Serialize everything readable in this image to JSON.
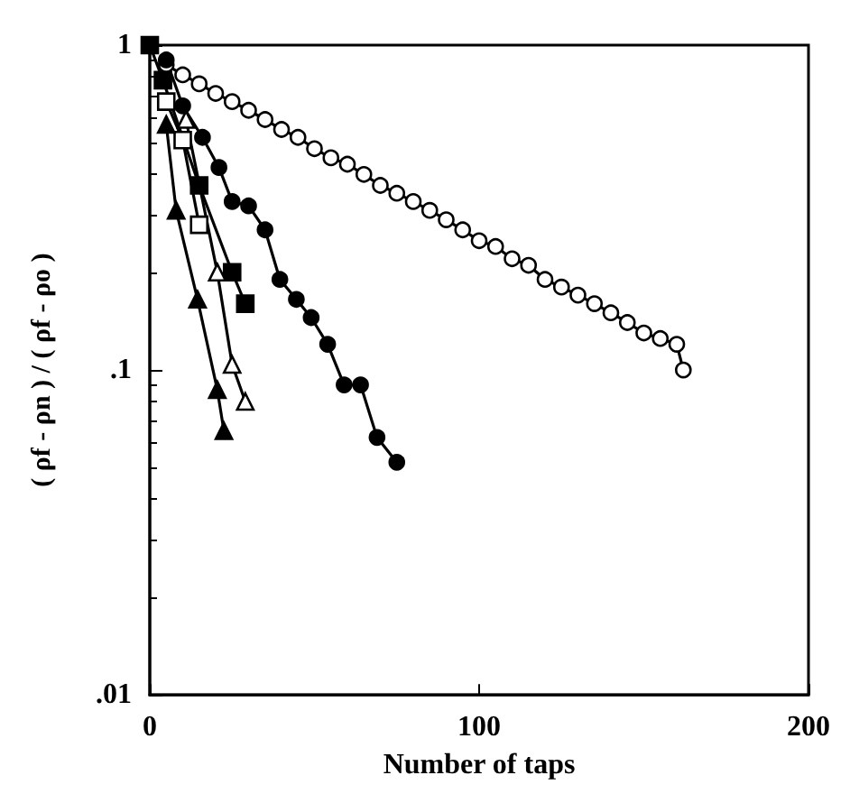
{
  "chart_data": {
    "type": "line",
    "xlabel": "Number of taps",
    "ylabel": "( ρf - ρn ) / ( ρf - ρo )",
    "xlim": [
      0,
      200
    ],
    "xticks": [
      0,
      100,
      200
    ],
    "ylim": [
      0.01,
      1
    ],
    "yticks": [
      {
        "value": 0.01,
        "label": ".01"
      },
      {
        "value": 0.1,
        "label": ".1"
      },
      {
        "value": 1,
        "label": "1"
      }
    ],
    "log": "y",
    "grid": false,
    "line_style": "solid",
    "series": [
      {
        "color": "#ffffff",
        "marker": "circle",
        "x": [
          5,
          10,
          15,
          20,
          25,
          30,
          35,
          40,
          45,
          50,
          55,
          60,
          65,
          70,
          75,
          80,
          85,
          90,
          95,
          100,
          105,
          110,
          115,
          120,
          125,
          130,
          135,
          140,
          145,
          150,
          155,
          160,
          162
        ],
        "values": [
          0.87,
          0.81,
          0.76,
          0.71,
          0.67,
          0.63,
          0.59,
          0.55,
          0.52,
          0.48,
          0.45,
          0.43,
          0.4,
          0.37,
          0.35,
          0.33,
          0.31,
          0.29,
          0.27,
          0.25,
          0.24,
          0.22,
          0.21,
          0.19,
          0.18,
          0.17,
          0.16,
          0.15,
          0.14,
          0.13,
          0.125,
          0.12,
          0.1
        ]
      },
      {
        "color": "#000000",
        "marker": "circle",
        "x": [
          5,
          10,
          16,
          21,
          25,
          30,
          35,
          39.5,
          44.5,
          49,
          54,
          59,
          64,
          69,
          75
        ],
        "values": [
          0.9,
          0.65,
          0.52,
          0.42,
          0.33,
          0.32,
          0.27,
          0.19,
          0.165,
          0.145,
          0.12,
          0.09,
          0.09,
          0.062,
          0.052
        ]
      },
      {
        "color": "#000000",
        "marker": "square",
        "x": [
          0,
          4,
          15,
          25,
          29
        ],
        "values": [
          1,
          0.78,
          0.37,
          0.2,
          0.16
        ]
      },
      {
        "color": "#ffffff",
        "marker": "square",
        "x": [
          5,
          10,
          15
        ],
        "values": [
          0.67,
          0.51,
          0.28
        ]
      },
      {
        "color": "#ffffff",
        "marker": "triangle",
        "x": [
          11,
          20.5,
          25,
          29
        ],
        "values": [
          0.59,
          0.2,
          0.104,
          0.08
        ]
      },
      {
        "color": "#000000",
        "marker": "triangle",
        "x": [
          5,
          8,
          14.5,
          20.5,
          22.5
        ],
        "values": [
          0.57,
          0.31,
          0.165,
          0.087,
          0.065
        ]
      }
    ]
  }
}
